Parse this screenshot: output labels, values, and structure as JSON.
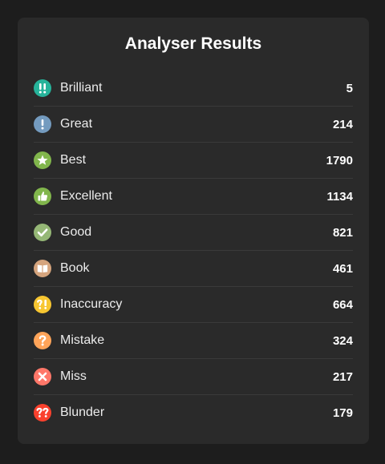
{
  "panel": {
    "title": "Analyser Results"
  },
  "rows": [
    {
      "label": "Brilliant",
      "count": "5",
      "icon": "brilliant-icon",
      "color": "#26b39a"
    },
    {
      "label": "Great",
      "count": "214",
      "icon": "great-icon",
      "color": "#749bbf"
    },
    {
      "label": "Best",
      "count": "1790",
      "icon": "best-star-icon",
      "color": "#81b64c"
    },
    {
      "label": "Excellent",
      "count": "1134",
      "icon": "excellent-thumbs-up-icon",
      "color": "#81b64c"
    },
    {
      "label": "Good",
      "count": "821",
      "icon": "good-check-icon",
      "color": "#95b776"
    },
    {
      "label": "Book",
      "count": "461",
      "icon": "book-icon",
      "color": "#d5a47d"
    },
    {
      "label": "Inaccuracy",
      "count": "664",
      "icon": "inaccuracy-icon",
      "color": "#f7c631"
    },
    {
      "label": "Mistake",
      "count": "324",
      "icon": "mistake-icon",
      "color": "#ffa459"
    },
    {
      "label": "Miss",
      "count": "217",
      "icon": "miss-x-icon",
      "color": "#ff7769"
    },
    {
      "label": "Blunder",
      "count": "179",
      "icon": "blunder-icon",
      "color": "#fa412d"
    }
  ]
}
